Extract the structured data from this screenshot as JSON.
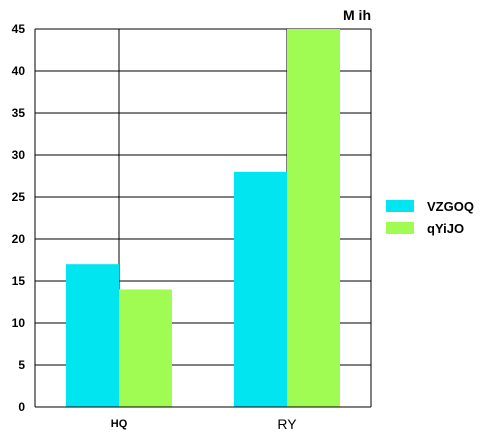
{
  "chart_data": {
    "type": "bar",
    "unit_label": "M ih",
    "categories": [
      "HQ",
      "RY"
    ],
    "series": [
      {
        "name": "VZGOQ",
        "color": "#00e5f0",
        "values": [
          17,
          28
        ]
      },
      {
        "name": "qYiJO",
        "color": "#a0fc52",
        "values": [
          14,
          45
        ]
      }
    ],
    "ylim": [
      0,
      45
    ],
    "yticks": [
      "0",
      "5",
      "10",
      "15",
      "20",
      "25",
      "30",
      "35",
      "40",
      "45"
    ],
    "grid": true,
    "legend_position": "right"
  }
}
